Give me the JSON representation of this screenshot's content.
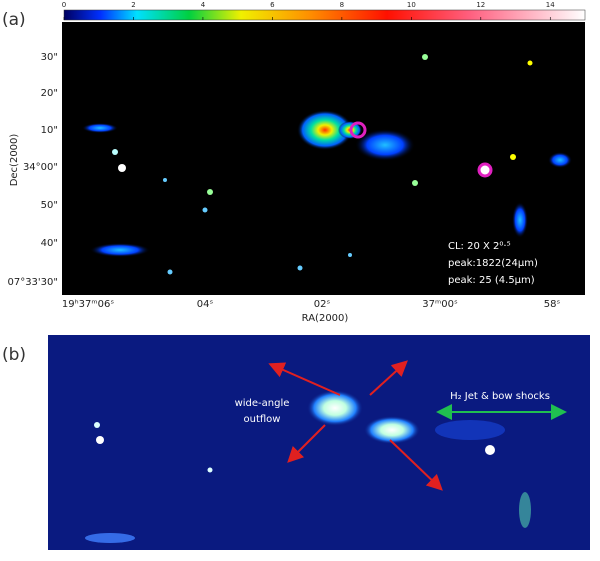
{
  "panel_a": {
    "label": "(a)",
    "colorbar": {
      "lim": [
        0,
        15
      ],
      "ticks": [
        0,
        2,
        4,
        6,
        8,
        10,
        12,
        14
      ]
    },
    "y_axis_label": "Dec(2000)",
    "x_axis_label": "RA(2000)",
    "y_tick_labels": [
      "30\"",
      "20\"",
      "10\"",
      "34°00\"",
      "50\"",
      "40\"",
      "07°33'30\""
    ],
    "x_tick_labels": [
      "19ʰ37ᵐ06ˢ",
      "04ˢ",
      "02ˢ",
      "37ᵐ00ˢ",
      "58ˢ"
    ],
    "annotations": [
      "CL: 20 X 2⁰·⁵",
      "peak:1822(24μm)",
      "peak: 25 (4.5μm)"
    ]
  },
  "panel_b": {
    "label": "(b)",
    "annotations": {
      "outflow": [
        "wide-angle",
        "outflow"
      ],
      "jet": "H₂ Jet & bow shocks"
    }
  }
}
